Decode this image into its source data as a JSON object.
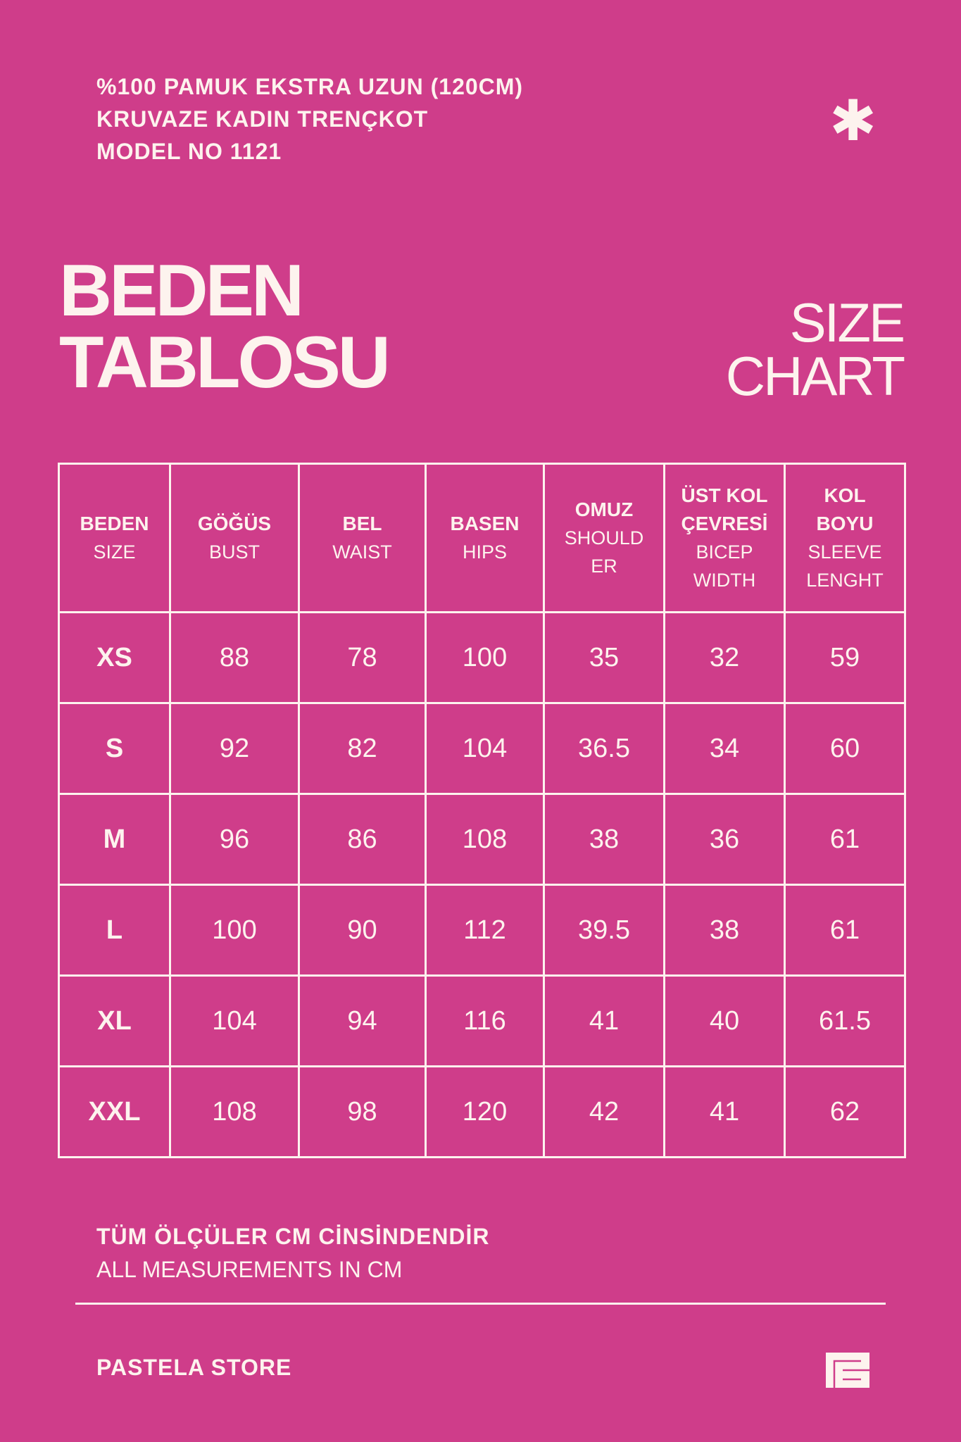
{
  "header": {
    "lines": [
      "%100 PAMUK EKSTRA UZUN (120CM)",
      "KRUVAZE KADIN TRENÇKOT",
      "MODEL NO 1121"
    ],
    "icon": "asterisk-icon"
  },
  "title": {
    "line1": "BEDEN",
    "line2": "TABLOSU"
  },
  "subtitle": {
    "line1": "SIZE",
    "line2": "CHART"
  },
  "table": {
    "columns": [
      {
        "tr": "BEDEN",
        "en": [
          "SIZE"
        ]
      },
      {
        "tr": "GÖĞÜS",
        "en": [
          "BUST"
        ]
      },
      {
        "tr": "BEL",
        "en": [
          "WAIST"
        ]
      },
      {
        "tr": "BASEN",
        "en": [
          "HIPS"
        ]
      },
      {
        "tr": "OMUZ",
        "en": [
          "SHOULD",
          "ER"
        ]
      },
      {
        "tr": "ÜST KOL ÇEVRESİ",
        "tr_lines": [
          "ÜST KOL",
          "ÇEVRESİ"
        ],
        "en": [
          "BICEP",
          "WIDTH"
        ]
      },
      {
        "tr": "KOL BOYU",
        "tr_lines": [
          "KOL",
          "BOYU"
        ],
        "en": [
          "SLEEVE",
          "LENGHT"
        ]
      }
    ],
    "rows": [
      [
        "XS",
        "88",
        "78",
        "100",
        "35",
        "32",
        "59"
      ],
      [
        "S",
        "92",
        "82",
        "104",
        "36.5",
        "34",
        "60"
      ],
      [
        "M",
        "96",
        "86",
        "108",
        "38",
        "36",
        "61"
      ],
      [
        "L",
        "100",
        "90",
        "112",
        "39.5",
        "38",
        "61"
      ],
      [
        "XL",
        "104",
        "94",
        "116",
        "41",
        "40",
        "61.5"
      ],
      [
        "XXL",
        "108",
        "98",
        "120",
        "42",
        "41",
        "62"
      ]
    ]
  },
  "footer": {
    "note_tr": "TÜM ÖLÇÜLER CM CİNSİNDENDİR",
    "note_en": "ALL MEASUREMENTS IN CM",
    "store": "PASTELA STORE",
    "logo": "store-logo"
  },
  "colors": {
    "background": "#cf3d8a",
    "text": "#fdf3ee"
  }
}
